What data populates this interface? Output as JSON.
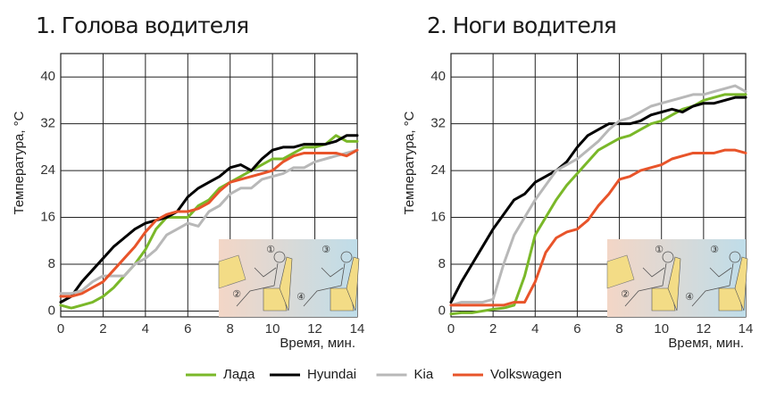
{
  "chart_data": [
    {
      "type": "line",
      "title": "1. Голова водителя",
      "y_label": "Температура, °С",
      "x_label": "Время, мин.",
      "x": [
        0,
        0.5,
        1,
        1.5,
        2,
        2.5,
        3,
        3.5,
        4,
        4.5,
        5,
        5.5,
        6,
        6.5,
        7,
        7.5,
        8,
        8.5,
        9,
        9.5,
        10,
        10.5,
        11,
        11.5,
        12,
        12.5,
        13,
        13.5,
        14
      ],
      "xlim": [
        0,
        14
      ],
      "xticks": [
        0,
        2,
        4,
        6,
        8,
        10,
        12,
        14
      ],
      "ylim": [
        -1,
        44
      ],
      "yticks": [
        0,
        8,
        16,
        24,
        32,
        40
      ],
      "grid": true,
      "inset_labels": [
        "①",
        "②",
        "③",
        "④"
      ],
      "series": [
        {
          "name": "Лада",
          "color": "#7ab829",
          "values": [
            1,
            0.5,
            1,
            1.5,
            2.5,
            4,
            6,
            8,
            10.5,
            14,
            16,
            16,
            16,
            18,
            19,
            21,
            22,
            23,
            24,
            25,
            26,
            26,
            27,
            28,
            28,
            28.5,
            30,
            29,
            29
          ]
        },
        {
          "name": "Hyundai",
          "color": "#000000",
          "values": [
            1.5,
            2.5,
            5,
            7,
            9,
            11,
            12.5,
            14,
            15,
            15.5,
            16,
            17,
            19.5,
            21,
            22,
            23,
            24.5,
            25,
            24,
            26,
            27.5,
            28,
            28,
            28.5,
            28.5,
            28.5,
            29,
            30,
            30
          ]
        },
        {
          "name": "Kia",
          "color": "#b8b8b8",
          "values": [
            3,
            3,
            3.5,
            5,
            6,
            6,
            6,
            8,
            9,
            10.5,
            13,
            14,
            15,
            14.5,
            17,
            18,
            20,
            21,
            21,
            22.5,
            23,
            23.5,
            24.5,
            24.5,
            25.5,
            26,
            26.5,
            27,
            27.5
          ]
        },
        {
          "name": "Volkswagen",
          "color": "#e8542a",
          "values": [
            2.5,
            2.5,
            3,
            4,
            5,
            7,
            9,
            11,
            13.5,
            15.5,
            16.5,
            17,
            17,
            17.5,
            18.5,
            20.5,
            22,
            22.5,
            23,
            23.5,
            24,
            25.5,
            26.5,
            27,
            27,
            27,
            27,
            26.5,
            27.5
          ]
        }
      ]
    },
    {
      "type": "line",
      "title": "2. Ноги водителя",
      "y_label": "Температура, °С",
      "x_label": "Время, мин.",
      "x": [
        0,
        0.5,
        1,
        1.5,
        2,
        2.5,
        3,
        3.5,
        4,
        4.5,
        5,
        5.5,
        6,
        6.5,
        7,
        7.5,
        8,
        8.5,
        9,
        9.5,
        10,
        10.5,
        11,
        11.5,
        12,
        12.5,
        13,
        13.5,
        14
      ],
      "xlim": [
        0,
        14
      ],
      "xticks": [
        0,
        2,
        4,
        6,
        8,
        10,
        12,
        14
      ],
      "ylim": [
        -1,
        44
      ],
      "yticks": [
        0,
        8,
        16,
        24,
        32,
        40
      ],
      "grid": true,
      "inset_labels": [
        "①",
        "②",
        "③",
        "④"
      ],
      "series": [
        {
          "name": "Лада",
          "color": "#7ab829",
          "values": [
            -0.5,
            -0.3,
            -0.3,
            0,
            0.3,
            0.5,
            1,
            6,
            13,
            16,
            19,
            21.5,
            23.5,
            25.5,
            27.5,
            28.5,
            29.5,
            30,
            31,
            32,
            32.5,
            33.5,
            34.5,
            35,
            36,
            36.5,
            37,
            37,
            37
          ]
        },
        {
          "name": "Hyundai",
          "color": "#000000",
          "values": [
            1.5,
            5,
            8,
            11,
            14,
            16.5,
            19,
            20,
            22,
            23,
            24,
            25.5,
            28,
            30,
            31,
            32,
            32,
            32,
            32.5,
            33.5,
            34,
            34.5,
            34,
            35,
            35.5,
            35.5,
            36,
            36.5,
            36.5
          ]
        },
        {
          "name": "Kia",
          "color": "#b8b8b8",
          "values": [
            1,
            1.5,
            1.5,
            1.5,
            2,
            8,
            13,
            16,
            19,
            21.5,
            24,
            25,
            26,
            27.5,
            29,
            31,
            32.5,
            33,
            34,
            35,
            35.5,
            36,
            36.5,
            37,
            37,
            37.5,
            38,
            38.5,
            37.5
          ]
        },
        {
          "name": "Volkswagen",
          "color": "#e8542a",
          "values": [
            1,
            1,
            1,
            1,
            1,
            1,
            1.5,
            1.5,
            5,
            10,
            12.5,
            13.5,
            14,
            15.5,
            18,
            20,
            22.5,
            23,
            24,
            24.5,
            25,
            26,
            26.5,
            27,
            27,
            27,
            27.5,
            27.5,
            27
          ]
        }
      ]
    }
  ]
}
